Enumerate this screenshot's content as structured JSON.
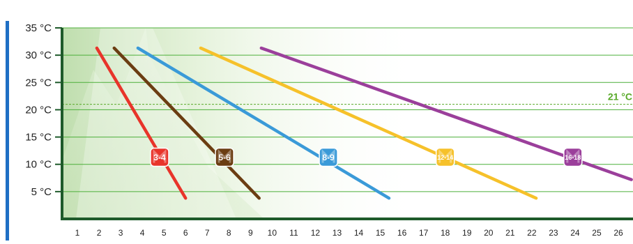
{
  "chart_data": {
    "type": "line",
    "title": "",
    "xlabel": "",
    "ylabel": "",
    "xlim": [
      0,
      26.5
    ],
    "ylim": [
      0,
      35
    ],
    "x_ticks": [
      1,
      2,
      3,
      4,
      5,
      6,
      7,
      8,
      9,
      10,
      11,
      12,
      13,
      14,
      15,
      16,
      17,
      18,
      19,
      20,
      21,
      22,
      23,
      24,
      25,
      26
    ],
    "x_tick_labels": [
      "1",
      "2",
      "3",
      "4",
      "5",
      "6",
      "7",
      "8",
      "9",
      "10",
      "11",
      "12",
      "13",
      "14",
      "15",
      "16",
      "17",
      "18",
      "19",
      "20",
      "21",
      "22",
      "23",
      "24",
      "25",
      "26"
    ],
    "y_ticks": [
      5,
      10,
      15,
      20,
      25,
      30,
      35
    ],
    "y_tick_labels": [
      "5 °C",
      "10 °C",
      "15 °C",
      "20 °C",
      "25 °C",
      "30 °C",
      "35 °C"
    ],
    "grid": "horizontal",
    "reference_line": {
      "y": 21,
      "label": "21 °C",
      "color": "#5aaa2a"
    },
    "colors": {
      "axis": "#1e5a2a",
      "grid": "#4caf3a",
      "left_bar": "#1f6fc4",
      "shading": "#cfe6c0"
    },
    "series": [
      {
        "name": "3-4",
        "color": "#e8342a",
        "x": [
          1.9,
          6.0
        ],
        "y": [
          31.3,
          3.8
        ],
        "badge_x": 4.8,
        "badge_y": 11.3
      },
      {
        "name": "5-6",
        "color": "#6b3d12",
        "x": [
          2.7,
          9.4
        ],
        "y": [
          31.3,
          3.8
        ],
        "badge_x": 7.8,
        "badge_y": 11.3
      },
      {
        "name": "8-9",
        "color": "#3a9ad8",
        "x": [
          3.8,
          15.4
        ],
        "y": [
          31.3,
          3.8
        ],
        "badge_x": 12.6,
        "badge_y": 11.3
      },
      {
        "name": "12-14",
        "color": "#f6c12a",
        "x": [
          6.7,
          22.2
        ],
        "y": [
          31.3,
          3.8
        ],
        "badge_x": 18.0,
        "badge_y": 11.3
      },
      {
        "name": "16-18",
        "color": "#9b3f9b",
        "x": [
          9.5,
          26.6
        ],
        "y": [
          31.3,
          7.2
        ],
        "badge_x": 23.9,
        "badge_y": 11.3
      }
    ]
  }
}
